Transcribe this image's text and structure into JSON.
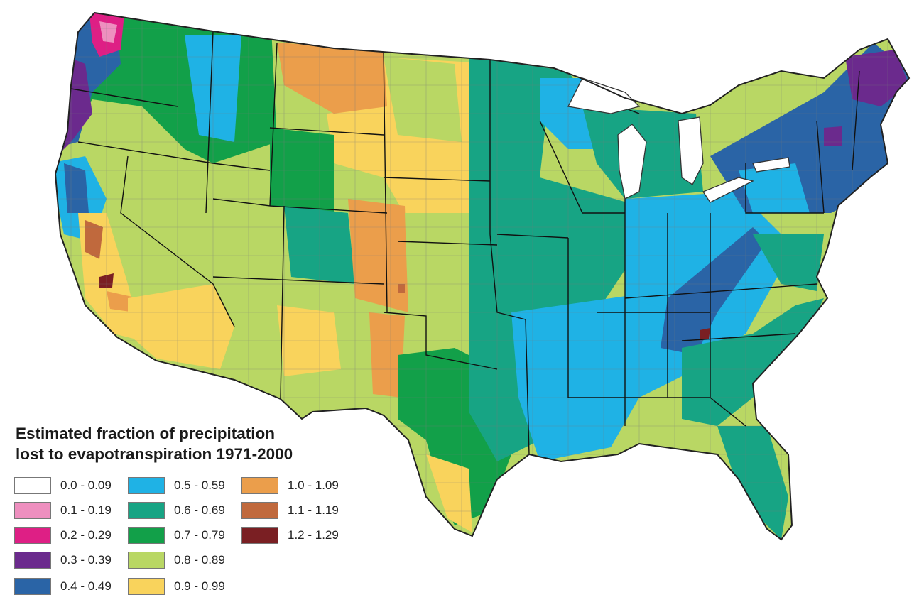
{
  "legend": {
    "title_line1": "Estimated fraction of precipitation",
    "title_line2": "lost to evapotranspiration 1971-2000",
    "classes": [
      {
        "label": "0.0 - 0.09",
        "color": "#ffffff"
      },
      {
        "label": "0.1 - 0.19",
        "color": "#ee8fbf"
      },
      {
        "label": "0.2 - 0.29",
        "color": "#de1f85"
      },
      {
        "label": "0.3 - 0.39",
        "color": "#6b2a8d"
      },
      {
        "label": "0.4 - 0.49",
        "color": "#2a64a6"
      },
      {
        "label": "0.5 - 0.59",
        "color": "#1fb2e5"
      },
      {
        "label": "0.6 - 0.69",
        "color": "#17a484"
      },
      {
        "label": "0.7 - 0.79",
        "color": "#12a049"
      },
      {
        "label": "0.8 - 0.89",
        "color": "#b9d764"
      },
      {
        "label": "0.9 - 0.99",
        "color": "#f9d35c"
      },
      {
        "label": "1.0 - 1.09",
        "color": "#eb9e4b"
      },
      {
        "label": "1.1 - 1.19",
        "color": "#c0693d"
      },
      {
        "label": "1.2 - 1.29",
        "color": "#7a1f23"
      }
    ]
  },
  "map": {
    "zones": [
      {
        "region": "Far Northwest coast",
        "class": "0.3 - 0.39"
      },
      {
        "region": "Puget Sound",
        "class": "0.2 - 0.29"
      },
      {
        "region": "Pacific Northwest west",
        "class": "0.4 - 0.49"
      },
      {
        "region": "Northern Rockies",
        "class": "0.7 - 0.79"
      },
      {
        "region": "Central Valley",
        "class": "0.8 - 0.89"
      },
      {
        "region": "Great Basin",
        "class": "0.8 - 0.89"
      },
      {
        "region": "Southwest desert",
        "class": "0.9 - 0.99"
      },
      {
        "region": "Northern Great Plains",
        "class": "0.9 - 0.99"
      },
      {
        "region": "Montana plains",
        "class": "1.0 - 1.09"
      },
      {
        "region": "Colorado / Kansas plains",
        "class": "1.0 - 1.09"
      },
      {
        "region": "Midwest",
        "class": "0.6 - 0.69"
      },
      {
        "region": "Texas central",
        "class": "0.7 - 0.79"
      },
      {
        "region": "Lower Mississippi",
        "class": "0.5 - 0.59"
      },
      {
        "region": "Ohio Valley",
        "class": "0.5 - 0.59"
      },
      {
        "region": "Appalachians",
        "class": "0.4 - 0.49"
      },
      {
        "region": "New England",
        "class": "0.4 - 0.49"
      },
      {
        "region": "Southeast coastal plain",
        "class": "0.6 - 0.69"
      },
      {
        "region": "Florida",
        "class": "0.6 - 0.69"
      }
    ]
  }
}
